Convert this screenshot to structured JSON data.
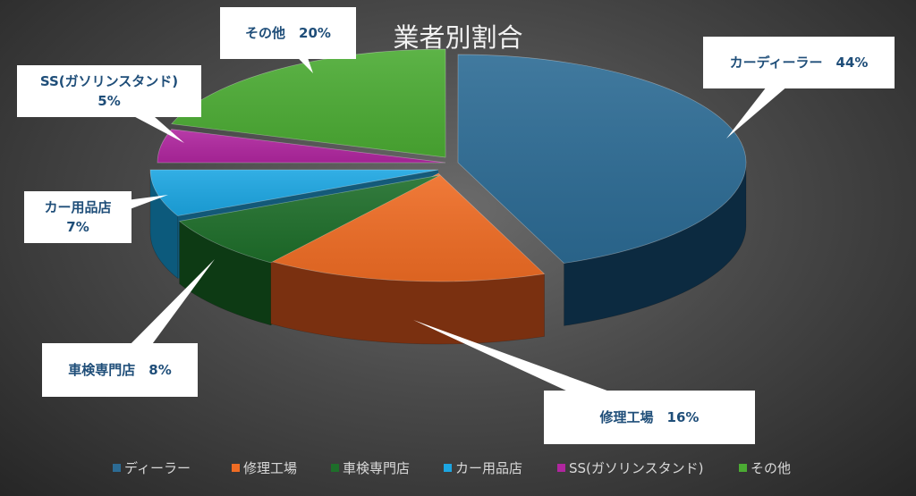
{
  "chart_data": {
    "type": "pie",
    "title": "業者別割合",
    "categories": [
      "カーディーラー",
      "修理工場",
      "車検専門店",
      "カー用品店",
      "SS(ガソリンスタンド)",
      "その他"
    ],
    "values": [
      44,
      16,
      8,
      7,
      5,
      20
    ],
    "unit": "%",
    "data_labels": [
      [
        "カーディーラー　44%"
      ],
      [
        "修理工場　16%"
      ],
      [
        "車検専門店　8%"
      ],
      [
        "カー用品店",
        "7%"
      ],
      [
        "SS(ガソリンスタンド)",
        "5%"
      ],
      [
        "その他　20%"
      ]
    ],
    "legend": {
      "position": "bottom",
      "entries": [
        "ディーラー",
        "修理工場",
        "車検専門店",
        "カー用品店",
        "SS(ガソリンスタンド)",
        "その他"
      ]
    },
    "colors": [
      "#2c6b94",
      "#ef6c24",
      "#1e6e2a",
      "#1ca6e2",
      "#b0269f",
      "#4bab33"
    ],
    "side_colors": [
      "#0c2a40",
      "#7a3010",
      "#0d3a14",
      "#0c5a7c",
      "#5a0f52",
      "#245c16"
    ],
    "style": "3d-exploded-pie"
  }
}
